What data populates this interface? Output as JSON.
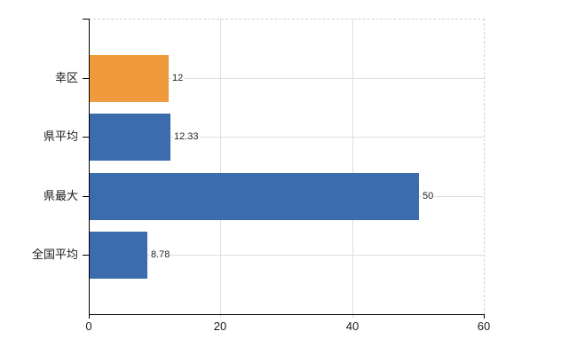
{
  "chart_data": {
    "type": "bar",
    "orientation": "horizontal",
    "title": "",
    "xlabel": "",
    "ylabel": "",
    "categories": [
      "幸区",
      "県平均",
      "県最大",
      "全国平均"
    ],
    "values": [
      12,
      12.33,
      50,
      8.78
    ],
    "value_labels": [
      "12",
      "12.33",
      "50",
      "8.78"
    ],
    "bar_colors": [
      "#f09a3e",
      "#3a6cae",
      "#3a6cae",
      "#3a6cae"
    ],
    "xlim": [
      0,
      60
    ],
    "xticks": [
      0,
      20,
      40,
      60
    ],
    "xtick_labels": [
      "0",
      "20",
      "40",
      "60"
    ],
    "grid": true,
    "legend": false
  },
  "colors": {
    "background": "#ffffff",
    "axis": "#000000",
    "gridline": "#dcdedc",
    "plot_border": "#cfcfcf",
    "text": "#1a1a1a",
    "value_text": "#222222"
  }
}
